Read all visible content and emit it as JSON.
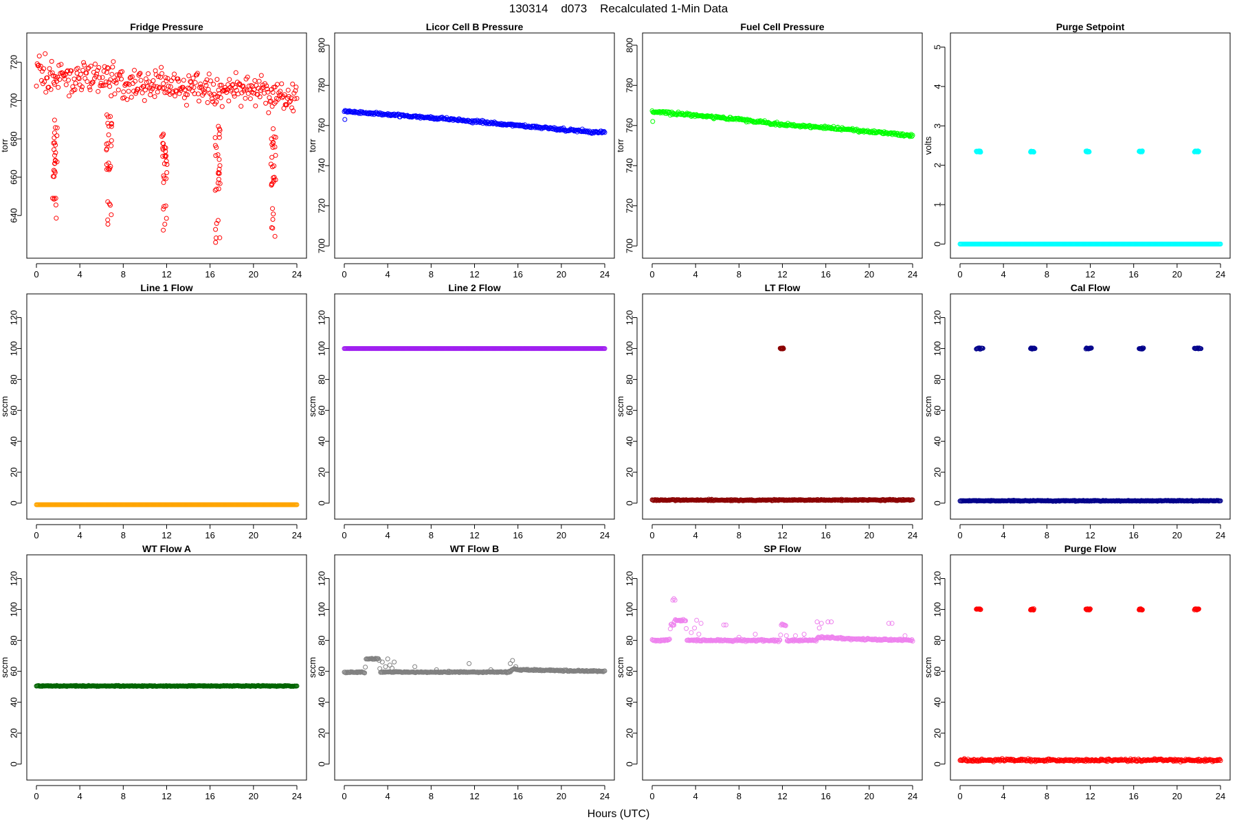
{
  "figure": {
    "title": "130314    d073    Recalculated 1-Min Data",
    "xlabel": "Hours (UTC)"
  },
  "chart_data": [
    {
      "type": "scatter",
      "title": "Fridge Pressure",
      "ylabel": "torr",
      "color": "#ff0000",
      "xlim": [
        0,
        24
      ],
      "ylim": [
        622,
        731
      ],
      "xticks": [
        0,
        4,
        8,
        12,
        16,
        20,
        24
      ],
      "yticks": [
        640,
        660,
        680,
        700,
        720
      ],
      "baseline": [
        [
          0,
          713
        ],
        [
          2,
          713
        ],
        [
          4,
          712
        ],
        [
          6,
          711
        ],
        [
          8,
          711
        ],
        [
          10,
          709
        ],
        [
          12,
          707
        ],
        [
          14,
          707
        ],
        [
          16,
          706
        ],
        [
          18,
          705
        ],
        [
          20,
          706
        ],
        [
          21.5,
          704
        ],
        [
          22,
          703
        ],
        [
          24,
          703
        ]
      ],
      "noise": 6,
      "spikes": [
        {
          "x": 1.7,
          "min": 636,
          "max": 690
        },
        {
          "x": 6.7,
          "min": 632,
          "max": 697
        },
        {
          "x": 11.8,
          "min": 632,
          "max": 686
        },
        {
          "x": 16.7,
          "min": 625,
          "max": 687
        },
        {
          "x": 21.8,
          "min": 629,
          "max": 688
        }
      ]
    },
    {
      "type": "scatter",
      "title": "Licor Cell B Pressure",
      "ylabel": "torr",
      "color": "#0000ff",
      "xlim": [
        0,
        24
      ],
      "ylim": [
        698,
        802
      ],
      "xticks": [
        0,
        4,
        8,
        12,
        16,
        20,
        24
      ],
      "yticks": [
        700,
        720,
        740,
        760,
        780,
        800
      ],
      "baseline": [
        [
          0,
          767
        ],
        [
          4,
          765.5
        ],
        [
          8,
          764
        ],
        [
          12,
          762
        ],
        [
          16,
          760
        ],
        [
          20,
          758
        ],
        [
          24,
          756.5
        ]
      ],
      "noise": 0.5,
      "outliers": [
        [
          0.05,
          763
        ]
      ]
    },
    {
      "type": "scatter",
      "title": "Fuel Cell Pressure",
      "ylabel": "torr",
      "color": "#00ff00",
      "xlim": [
        0,
        24
      ],
      "ylim": [
        698,
        802
      ],
      "xticks": [
        0,
        4,
        8,
        12,
        16,
        20,
        24
      ],
      "yticks": [
        700,
        720,
        740,
        760,
        780,
        800
      ],
      "baseline": [
        [
          0,
          767
        ],
        [
          4,
          765
        ],
        [
          8,
          763
        ],
        [
          12,
          760.5
        ],
        [
          16,
          759
        ],
        [
          20,
          757
        ],
        [
          24,
          755
        ]
      ],
      "noise": 0.5,
      "outliers": [
        [
          0.05,
          762
        ]
      ]
    },
    {
      "type": "scatter",
      "title": "Purge Setpoint",
      "ylabel": "volts",
      "color": "#00ffff",
      "xlim": [
        0,
        24
      ],
      "ylim": [
        -0.15,
        5.15
      ],
      "xticks": [
        0,
        4,
        8,
        12,
        16,
        20,
        24
      ],
      "yticks": [
        0,
        1,
        2,
        3,
        4,
        5
      ],
      "baseline": [
        [
          0,
          0
        ],
        [
          24,
          0
        ]
      ],
      "noise": 0,
      "plateaus": [
        {
          "x1": 1.5,
          "x2": 1.9,
          "y": 2.35
        },
        {
          "x1": 6.5,
          "x2": 6.8,
          "y": 2.35
        },
        {
          "x1": 11.6,
          "x2": 11.9,
          "y": 2.35
        },
        {
          "x1": 16.5,
          "x2": 16.8,
          "y": 2.35
        },
        {
          "x1": 21.6,
          "x2": 22.0,
          "y": 2.35
        }
      ]
    },
    {
      "type": "scatter",
      "title": "Line 1 Flow",
      "ylabel": "sccm",
      "color": "#ffa500",
      "xlim": [
        0,
        24
      ],
      "ylim": [
        -5,
        130
      ],
      "xticks": [
        0,
        4,
        8,
        12,
        16,
        20,
        24
      ],
      "yticks": [
        0,
        20,
        40,
        60,
        80,
        100,
        120
      ],
      "baseline": [
        [
          0,
          -1
        ],
        [
          24,
          -1
        ]
      ],
      "noise": 0
    },
    {
      "type": "scatter",
      "title": "Line 2 Flow",
      "ylabel": "sccm",
      "color": "#a020f0",
      "xlim": [
        0,
        24
      ],
      "ylim": [
        -5,
        130
      ],
      "xticks": [
        0,
        4,
        8,
        12,
        16,
        20,
        24
      ],
      "yticks": [
        0,
        20,
        40,
        60,
        80,
        100,
        120
      ],
      "baseline": [
        [
          0,
          100
        ],
        [
          24,
          100
        ]
      ],
      "noise": 0
    },
    {
      "type": "scatter",
      "title": "LT Flow",
      "ylabel": "sccm",
      "color": "#8b0000",
      "xlim": [
        0,
        24
      ],
      "ylim": [
        -5,
        130
      ],
      "xticks": [
        0,
        4,
        8,
        12,
        16,
        20,
        24
      ],
      "yticks": [
        0,
        20,
        40,
        60,
        80,
        100,
        120
      ],
      "baseline": [
        [
          0,
          2
        ],
        [
          24,
          2
        ]
      ],
      "noise": 0.3,
      "plateaus": [
        {
          "x1": 11.8,
          "x2": 12.1,
          "y": 100
        }
      ]
    },
    {
      "type": "scatter",
      "title": "Cal Flow",
      "ylabel": "sccm",
      "color": "#00008b",
      "xlim": [
        0,
        24
      ],
      "ylim": [
        -5,
        130
      ],
      "xticks": [
        0,
        4,
        8,
        12,
        16,
        20,
        24
      ],
      "yticks": [
        0,
        20,
        40,
        60,
        80,
        100,
        120
      ],
      "baseline": [
        [
          0,
          1.5
        ],
        [
          24,
          1.5
        ]
      ],
      "noise": 0.2,
      "plateaus": [
        {
          "x1": 1.5,
          "x2": 2.1,
          "y": 100
        },
        {
          "x1": 6.5,
          "x2": 6.9,
          "y": 100
        },
        {
          "x1": 11.6,
          "x2": 12.1,
          "y": 100
        },
        {
          "x1": 16.5,
          "x2": 16.9,
          "y": 100
        },
        {
          "x1": 21.6,
          "x2": 22.2,
          "y": 100
        }
      ]
    },
    {
      "type": "scatter",
      "title": "WT Flow A",
      "ylabel": "sccm",
      "color": "#006400",
      "xlim": [
        0,
        24
      ],
      "ylim": [
        -5,
        130
      ],
      "xticks": [
        0,
        4,
        8,
        12,
        16,
        20,
        24
      ],
      "yticks": [
        0,
        20,
        40,
        60,
        80,
        100,
        120
      ],
      "baseline": [
        [
          0,
          50.5
        ],
        [
          24,
          50.5
        ]
      ],
      "noise": 0.2
    },
    {
      "type": "scatter",
      "title": "WT Flow B",
      "ylabel": "sccm",
      "color": "#808080",
      "xlim": [
        0,
        24
      ],
      "ylim": [
        -5,
        130
      ],
      "xticks": [
        0,
        4,
        8,
        12,
        16,
        20,
        24
      ],
      "yticks": [
        0,
        20,
        40,
        60,
        80,
        100,
        120
      ],
      "baseline": [
        [
          0,
          59.5
        ],
        [
          1.9,
          59.5
        ],
        [
          2.0,
          68
        ],
        [
          3.2,
          68
        ],
        [
          3.3,
          59.5
        ],
        [
          15.2,
          59.5
        ],
        [
          15.6,
          61.5
        ],
        [
          16,
          61
        ],
        [
          24,
          60
        ]
      ],
      "noise": 0.3,
      "outliers": [
        [
          3.5,
          66
        ],
        [
          3.8,
          63
        ],
        [
          4.0,
          68
        ],
        [
          4.2,
          64
        ],
        [
          4.4,
          62
        ],
        [
          4.6,
          66
        ],
        [
          6.5,
          63
        ],
        [
          8.5,
          61
        ],
        [
          11.5,
          65
        ],
        [
          13.5,
          61
        ],
        [
          15.3,
          65
        ],
        [
          15.5,
          67
        ],
        [
          15.8,
          63
        ]
      ]
    },
    {
      "type": "scatter",
      "title": "SP Flow",
      "ylabel": "sccm",
      "color": "#ee82ee",
      "xlim": [
        0,
        24
      ],
      "ylim": [
        -5,
        130
      ],
      "xticks": [
        0,
        4,
        8,
        12,
        16,
        20,
        24
      ],
      "yticks": [
        0,
        20,
        40,
        60,
        80,
        100,
        120
      ],
      "baseline": [
        [
          0,
          80
        ],
        [
          1.6,
          80
        ],
        [
          1.7,
          90
        ],
        [
          2.0,
          90
        ],
        [
          2.1,
          93
        ],
        [
          3.1,
          93
        ],
        [
          3.2,
          80
        ],
        [
          11.8,
          80
        ],
        [
          11.9,
          90
        ],
        [
          12.3,
          90
        ],
        [
          12.4,
          80
        ],
        [
          15.1,
          80
        ],
        [
          15.3,
          82
        ],
        [
          16.0,
          82
        ],
        [
          18.0,
          81
        ],
        [
          24,
          80
        ]
      ],
      "noise": 0.4,
      "outliers": [
        [
          1.9,
          106
        ],
        [
          2.0,
          107
        ],
        [
          2.1,
          106
        ],
        [
          3.6,
          85
        ],
        [
          3.9,
          88
        ],
        [
          4.1,
          93
        ],
        [
          4.3,
          84
        ],
        [
          4.5,
          91
        ],
        [
          6.6,
          90
        ],
        [
          6.8,
          90
        ],
        [
          8.0,
          82
        ],
        [
          9.5,
          84
        ],
        [
          13.2,
          83
        ],
        [
          14.0,
          84
        ],
        [
          15.2,
          92
        ],
        [
          15.4,
          88
        ],
        [
          15.6,
          91
        ],
        [
          16.2,
          92
        ],
        [
          16.5,
          92
        ],
        [
          21.8,
          91
        ],
        [
          22.1,
          91
        ],
        [
          23.3,
          83
        ]
      ]
    },
    {
      "type": "scatter",
      "title": "Purge Flow",
      "ylabel": "sccm",
      "color": "#ff0000",
      "xlim": [
        0,
        24
      ],
      "ylim": [
        -5,
        130
      ],
      "xticks": [
        0,
        4,
        8,
        12,
        16,
        20,
        24
      ],
      "yticks": [
        0,
        20,
        40,
        60,
        80,
        100,
        120
      ],
      "baseline": [
        [
          0,
          2.5
        ],
        [
          24,
          2.5
        ]
      ],
      "noise": 0.6,
      "plateaus": [
        {
          "x1": 1.5,
          "x2": 1.9,
          "y": 100
        },
        {
          "x1": 6.5,
          "x2": 6.8,
          "y": 100
        },
        {
          "x1": 11.6,
          "x2": 12.0,
          "y": 100
        },
        {
          "x1": 16.5,
          "x2": 16.8,
          "y": 100
        },
        {
          "x1": 21.6,
          "x2": 22.0,
          "y": 100
        }
      ]
    }
  ]
}
